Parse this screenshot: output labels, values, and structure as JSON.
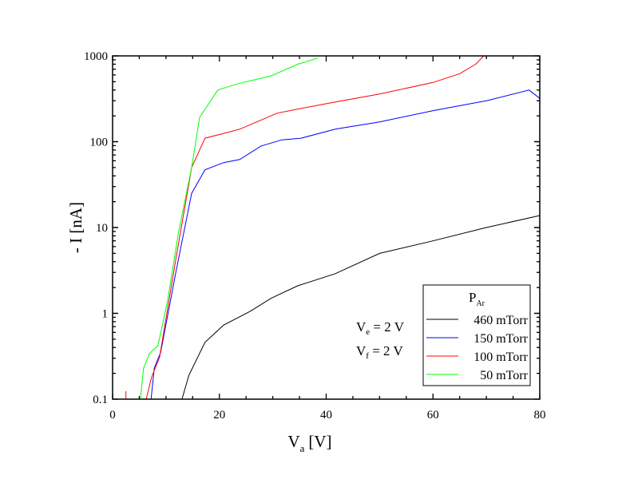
{
  "chart_data": {
    "type": "line",
    "xlabel": "V",
    "xlabel_sub": "a",
    "xlabel_unit": "[V]",
    "ylabel": "- I [nA]",
    "xlim": [
      0,
      80
    ],
    "ylim": [
      0.1,
      1000
    ],
    "yscale": "log",
    "grid": false,
    "x_ticks": [
      "0",
      "20",
      "40",
      "60",
      "80"
    ],
    "y_ticks": [
      "0.1",
      "1",
      "10",
      "100",
      "1000"
    ],
    "legend": {
      "title": "P",
      "title_sub": "Ar",
      "placement": "bottom-right"
    },
    "annotations": [
      {
        "main": "V",
        "sub": "e",
        "rest": " = 2 V"
      },
      {
        "main": "V",
        "sub": "f",
        "rest": " = 2 V"
      }
    ],
    "series": [
      {
        "name": "460 mTorr",
        "color": "#000000",
        "x": [
          13,
          14.3,
          17.3,
          20.8,
          25.7,
          29.7,
          34.7,
          41.7,
          50,
          60,
          70,
          80
        ],
        "y": [
          0.1,
          0.19,
          0.46,
          0.73,
          1.05,
          1.5,
          2.1,
          2.9,
          5,
          7,
          10,
          13.8
        ]
      },
      {
        "name": "150 mTorr",
        "color": "#0000ff",
        "x": [
          7.2,
          7.8,
          9,
          11.8,
          14.8,
          17.3,
          20.8,
          23.8,
          27.8,
          31.7,
          35.3,
          41.7,
          50,
          60,
          70,
          78,
          80
        ],
        "y": [
          0.1,
          0.23,
          0.35,
          2.9,
          25,
          47,
          57,
          62,
          89,
          105,
          110,
          140,
          170,
          230,
          300,
          400,
          320
        ]
      },
      {
        "name": "100 mTorr",
        "color": "#ff0000",
        "x": [
          6.3,
          7.3,
          8.8,
          11.8,
          14.8,
          17.3,
          20.8,
          23.8,
          30.8,
          34.7,
          41.7,
          50,
          60,
          65,
          68,
          69.5
        ],
        "y": [
          0.1,
          0.18,
          0.31,
          4.1,
          50,
          110,
          125,
          140,
          215,
          240,
          290,
          360,
          490,
          620,
          800,
          1000
        ]
      },
      {
        "name": "50 mTorr",
        "color": "#00ff00",
        "x": [
          5.2,
          5.8,
          6.9,
          8.5,
          10.3,
          12.3,
          14.8,
          16.3,
          19.7,
          23.3,
          29.7,
          34.7,
          38.4
        ],
        "y": [
          0.1,
          0.23,
          0.34,
          0.42,
          1.4,
          8.5,
          50,
          192,
          400,
          470,
          585,
          800,
          940
        ]
      }
    ]
  }
}
